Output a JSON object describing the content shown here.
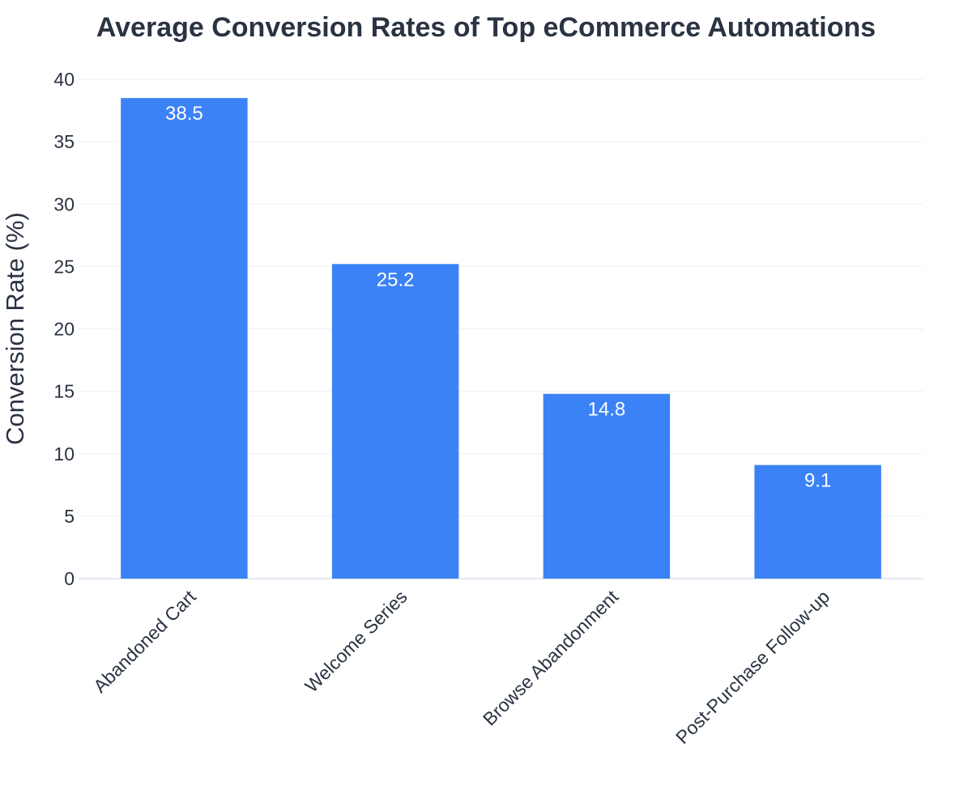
{
  "chart_data": {
    "type": "bar",
    "title": "Average Conversion Rates of Top eCommerce Automations",
    "xlabel": "",
    "ylabel": "Conversion Rate (%)",
    "categories": [
      "Abandoned Cart",
      "Welcome Series",
      "Browse Abandonment",
      "Post-Purchase Follow-up"
    ],
    "values": [
      38.5,
      25.2,
      14.8,
      9.1
    ],
    "data_labels": [
      "38.5",
      "25.2",
      "14.8",
      "9.1"
    ],
    "ylim": [
      0,
      40
    ],
    "yticks": [
      0,
      5,
      10,
      15,
      20,
      25,
      30,
      35,
      40
    ],
    "grid": true,
    "legend": "none",
    "colors": {
      "bar": "#3b82f6",
      "grid": "#edf0f5",
      "text": "#2a3342",
      "label": "#ffffff"
    }
  }
}
